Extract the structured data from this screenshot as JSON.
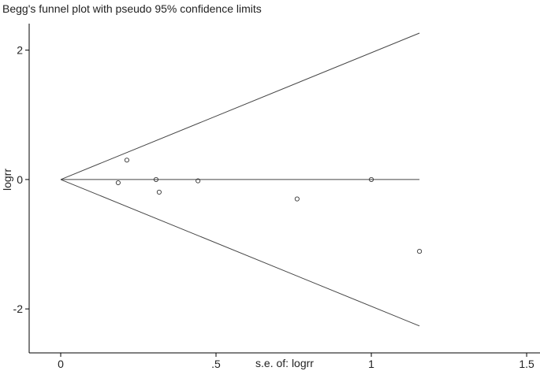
{
  "chart_data": {
    "type": "scatter",
    "title": "Begg's funnel plot with pseudo 95% confidence limits",
    "x_label": "s.e. of: logrr",
    "y_label": "logrr",
    "x": [
      0.185,
      0.213,
      0.307,
      0.317,
      0.442,
      0.761,
      1.0,
      1.155
    ],
    "values": [
      -0.05,
      0.3,
      0.0,
      -0.195,
      -0.02,
      -0.3,
      0.0,
      -1.11
    ],
    "color": "#333333",
    "lines": [
      {
        "x": [
          0,
          1.155
        ],
        "y": [
          0,
          2.264
        ]
      },
      {
        "x": [
          0,
          1.155
        ],
        "y": [
          0,
          0
        ]
      },
      {
        "x": [
          0,
          1.155
        ],
        "y": [
          0,
          -2.264
        ]
      }
    ],
    "xlim": [
      -0.1015,
      1.543
    ],
    "ylim": [
      -2.68,
      2.41
    ],
    "xticks": [
      0,
      {
        "value": 0.5,
        "label": ".5"
      },
      1,
      1.5
    ],
    "yticks": [
      -2,
      0,
      2
    ]
  }
}
